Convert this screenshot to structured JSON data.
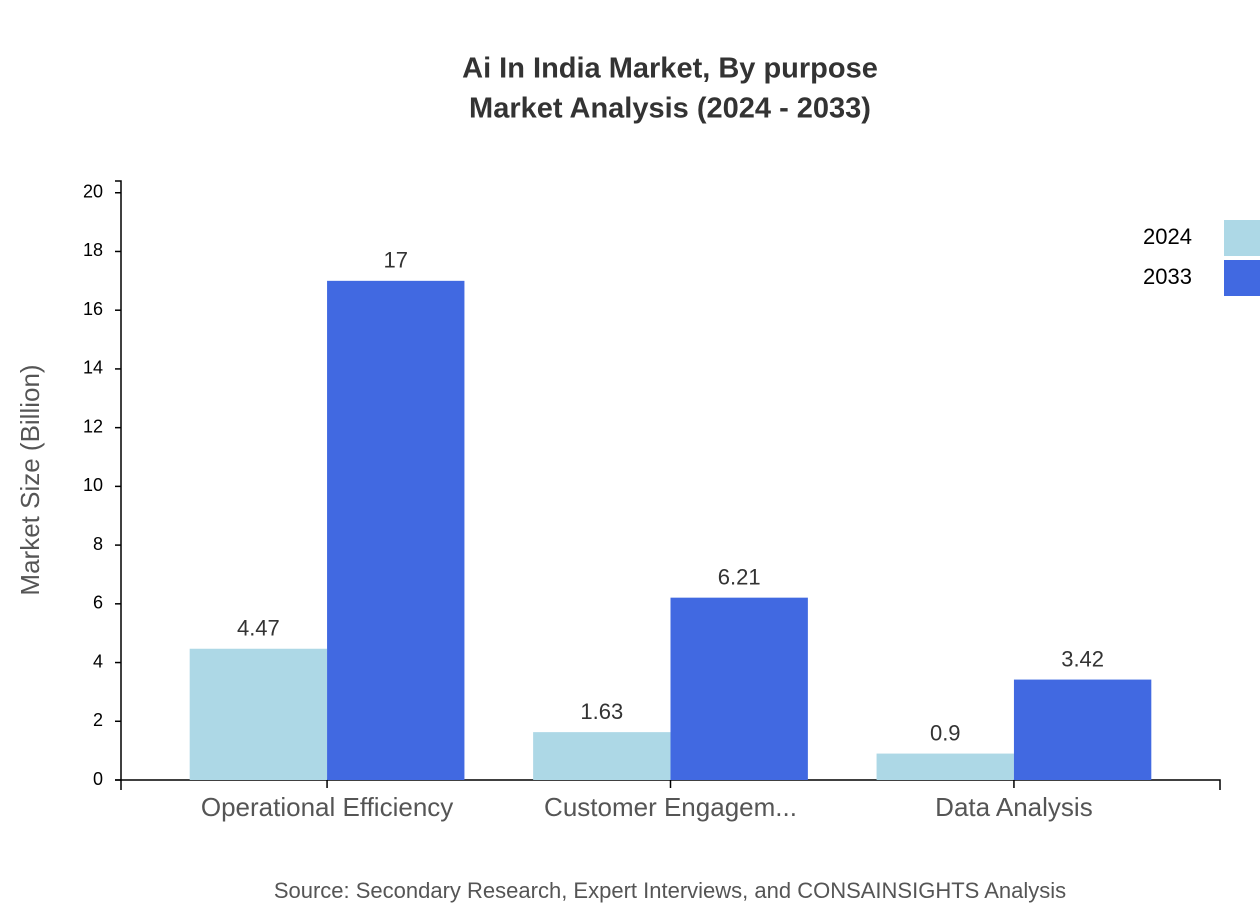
{
  "chart_data": {
    "type": "bar",
    "title": "Ai In India Market, By purpose",
    "subtitle": "Market Analysis (2024 - 2033)",
    "y_label": "Market Size (Billion)",
    "source": "Source: Secondary Research, Expert Interviews, and CONSAINSIGHTS Analysis",
    "categories": [
      "Operational Efficiency",
      "Customer Engagem...",
      "Data Analysis"
    ],
    "series": [
      {
        "name": "2024",
        "color": "#add8e6",
        "values": [
          4.47,
          1.63,
          0.9
        ]
      },
      {
        "name": "2033",
        "color": "#4169e1",
        "values": [
          17,
          6.21,
          3.42
        ]
      }
    ],
    "ylim": [
      0,
      20.4
    ],
    "yticks": [
      0,
      2,
      4,
      6,
      8,
      10,
      12,
      14,
      16,
      18,
      20
    ],
    "legend": "top-right"
  }
}
